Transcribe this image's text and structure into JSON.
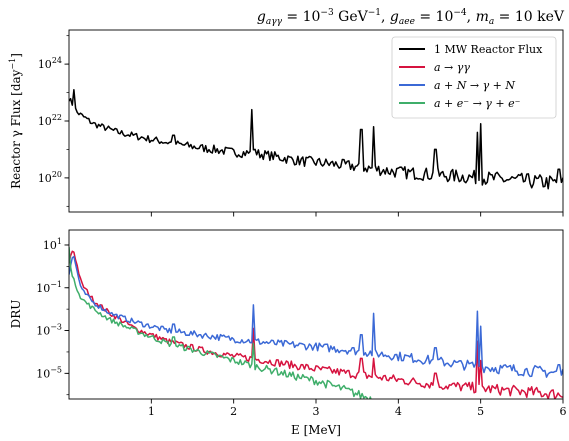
{
  "chart_data": [
    {
      "type": "line",
      "title": "g_{aγγ} = 10^{-3} GeV^{-1}, g_{aee} = 10^{-4}, m_a = 10 keV",
      "title_parts": {
        "g1_base": "g",
        "g1_sub": "aγγ",
        "g1_val": " = 10",
        "g1_exp": "−3",
        "g1_unit": " GeV",
        "g1_unit_exp": "−1",
        "sep1": ",  ",
        "g2_base": "g",
        "g2_sub": "aee",
        "g2_val": " = 10",
        "g2_exp": "−4",
        "sep2": ",  ",
        "m_base": "m",
        "m_sub": "a",
        "m_val": " = 10 keV"
      },
      "xlabel": "",
      "ylabel_parts": {
        "main": "Reactor γ Flux [day",
        "exp": "−1",
        "close": "]"
      },
      "yscale": "log",
      "xlim": [
        0.0,
        6.0
      ],
      "ylim_log10": [
        18.8,
        25.2
      ],
      "yticks": [
        {
          "exp": 20,
          "label_base": "10",
          "label_exp": "20"
        },
        {
          "exp": 22,
          "label_base": "10",
          "label_exp": "22"
        },
        {
          "exp": 24,
          "label_base": "10",
          "label_exp": "24"
        }
      ],
      "legend_position": "top-right",
      "series": [
        {
          "name": "1 MW Reactor Flux",
          "color": "#000000",
          "baseline_log10": [
            [
              0.0,
              22.8
            ],
            [
              0.1,
              22.3
            ],
            [
              0.3,
              21.9
            ],
            [
              0.6,
              21.6
            ],
            [
              1.0,
              21.35
            ],
            [
              1.5,
              21.1
            ],
            [
              2.0,
              20.9
            ],
            [
              2.3,
              20.85
            ],
            [
              2.8,
              20.6
            ],
            [
              3.5,
              20.4
            ],
            [
              4.0,
              20.2
            ],
            [
              5.0,
              20.0
            ],
            [
              6.0,
              19.8
            ]
          ],
          "peaks_log10": [
            [
              0.02,
              21.4
            ],
            [
              0.06,
              23.1
            ],
            [
              0.5,
              21.7
            ],
            [
              1.27,
              21.5
            ],
            [
              2.22,
              22.4
            ],
            [
              2.26,
              21.0
            ],
            [
              3.55,
              21.7
            ],
            [
              3.7,
              21.8
            ],
            [
              4.45,
              21.0
            ],
            [
              4.96,
              21.6
            ],
            [
              5.0,
              21.9
            ],
            [
              5.95,
              20.3
            ]
          ]
        }
      ]
    },
    {
      "type": "line",
      "xlabel": "E [MeV]",
      "ylabel": "DRU",
      "yscale": "log",
      "xlim": [
        0.0,
        6.0
      ],
      "ylim_log10": [
        -6.2,
        1.7
      ],
      "xticks": [
        "1",
        "2",
        "3",
        "4",
        "5",
        "6"
      ],
      "yticks": [
        {
          "exp": 1,
          "label_base": "10",
          "label_exp": "1"
        },
        {
          "exp": -1,
          "label_base": "10",
          "label_exp": "−1"
        },
        {
          "exp": -3,
          "label_base": "10",
          "label_exp": "−3"
        },
        {
          "exp": -5,
          "label_base": "10",
          "label_exp": "−5"
        }
      ],
      "series": [
        {
          "name": "a → γγ",
          "color": "#d6133f",
          "baseline_log10": [
            [
              0.0,
              0.2
            ],
            [
              0.05,
              0.85
            ],
            [
              0.15,
              -0.8
            ],
            [
              0.3,
              -1.6
            ],
            [
              0.5,
              -2.2
            ],
            [
              0.8,
              -2.9
            ],
            [
              1.2,
              -3.5
            ],
            [
              1.6,
              -3.9
            ],
            [
              2.0,
              -4.2
            ],
            [
              2.3,
              -4.35
            ],
            [
              3.0,
              -4.8
            ],
            [
              3.5,
              -5.05
            ],
            [
              4.0,
              -5.3
            ],
            [
              4.5,
              -5.55
            ],
            [
              5.0,
              -5.7
            ],
            [
              5.5,
              -5.85
            ],
            [
              6.0,
              -6.0
            ]
          ],
          "peaks_log10": [
            [
              2.24,
              -2.9
            ],
            [
              3.55,
              -4.3
            ],
            [
              3.7,
              -4.3
            ],
            [
              4.45,
              -5.0
            ],
            [
              4.96,
              -3.5
            ],
            [
              5.0,
              -4.4
            ]
          ]
        },
        {
          "name": "a + N → γ + N",
          "color": "#3b69d6",
          "baseline_log10": [
            [
              0.0,
              -0.3
            ],
            [
              0.05,
              0.6
            ],
            [
              0.15,
              -1.1
            ],
            [
              0.3,
              -1.7
            ],
            [
              0.5,
              -2.2
            ],
            [
              0.8,
              -2.6
            ],
            [
              1.2,
              -3.0
            ],
            [
              1.6,
              -3.2
            ],
            [
              2.0,
              -3.4
            ],
            [
              2.5,
              -3.6
            ],
            [
              3.0,
              -3.75
            ],
            [
              3.5,
              -3.95
            ],
            [
              4.0,
              -4.2
            ],
            [
              4.5,
              -4.45
            ],
            [
              5.0,
              -4.7
            ],
            [
              5.5,
              -4.85
            ],
            [
              6.0,
              -5.0
            ]
          ],
          "peaks_log10": [
            [
              0.5,
              -2.2
            ],
            [
              1.27,
              -2.7
            ],
            [
              2.24,
              -1.8
            ],
            [
              3.55,
              -3.2
            ],
            [
              3.7,
              -2.2
            ],
            [
              4.45,
              -3.8
            ],
            [
              4.96,
              -2.1
            ],
            [
              5.0,
              -2.8
            ],
            [
              5.95,
              -4.6
            ]
          ]
        },
        {
          "name": "a + e⁻ → γ + e⁻",
          "color": "#3fae6a",
          "baseline_log10": [
            [
              0.0,
              1.0
            ],
            [
              0.03,
              -0.4
            ],
            [
              0.15,
              -1.5
            ],
            [
              0.3,
              -2.0
            ],
            [
              0.5,
              -2.5
            ],
            [
              0.8,
              -3.0
            ],
            [
              1.2,
              -3.6
            ],
            [
              1.6,
              -4.0
            ],
            [
              2.0,
              -4.4
            ],
            [
              2.3,
              -4.7
            ],
            [
              2.7,
              -5.1
            ],
            [
              3.0,
              -5.35
            ],
            [
              3.3,
              -5.7
            ],
            [
              3.6,
              -6.1
            ],
            [
              4.0,
              -6.6
            ]
          ],
          "peaks_log10": [
            [
              0.5,
              -2.4
            ],
            [
              1.27,
              -3.3
            ],
            [
              2.24,
              -3.6
            ],
            [
              2.5,
              -4.8
            ]
          ]
        }
      ]
    }
  ]
}
